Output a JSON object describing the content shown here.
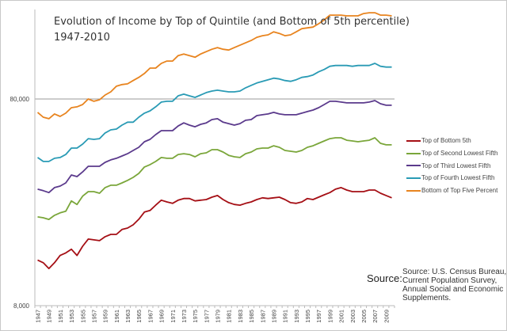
{
  "chart_data": {
    "type": "line",
    "title": "Evolution of Income by Top of Quintile (and Bottom of 5th percentile)",
    "subtitle": "1947-2010",
    "xlabel": "",
    "ylabel": "",
    "y_scale": "log",
    "ylim": [
      8000,
      220000
    ],
    "y_ticks": [
      8000,
      80000
    ],
    "y_tick_labels": [
      "8,000",
      "80,000"
    ],
    "gridlines": [
      80000
    ],
    "x": [
      1947,
      1948,
      1949,
      1950,
      1951,
      1952,
      1953,
      1954,
      1955,
      1956,
      1957,
      1958,
      1959,
      1960,
      1961,
      1962,
      1963,
      1964,
      1965,
      1966,
      1967,
      1968,
      1969,
      1970,
      1971,
      1972,
      1973,
      1974,
      1975,
      1976,
      1977,
      1978,
      1979,
      1980,
      1981,
      1982,
      1983,
      1984,
      1985,
      1986,
      1987,
      1988,
      1989,
      1990,
      1991,
      1992,
      1993,
      1994,
      1995,
      1996,
      1997,
      1998,
      1999,
      2000,
      2001,
      2002,
      2003,
      2004,
      2005,
      2006,
      2007,
      2008,
      2009,
      2010
    ],
    "x_tick_labels": [
      "1947",
      "1949",
      "1951",
      "1953",
      "1955",
      "1957",
      "1959",
      "1961",
      "1963",
      "1965",
      "1967",
      "1969",
      "1971",
      "1973",
      "1975",
      "1977",
      "1979",
      "1981",
      "1983",
      "1985",
      "1987",
      "1989",
      "1991",
      "1993",
      "1995",
      "1997",
      "1999",
      "2001",
      "2003",
      "2005",
      "2007",
      "2009"
    ],
    "legend_position": "right",
    "series": [
      {
        "name": "Top of Bottom 5th",
        "color": "#a50f15",
        "values": [
          13300,
          12900,
          12100,
          12900,
          14000,
          14400,
          15000,
          14000,
          15500,
          16800,
          16650,
          16500,
          17250,
          17700,
          17700,
          18700,
          19000,
          19700,
          20950,
          22700,
          23100,
          24500,
          25900,
          25400,
          25000,
          25900,
          26400,
          26400,
          25700,
          25900,
          26100,
          26800,
          27300,
          26100,
          25200,
          24700,
          24500,
          25000,
          25400,
          26100,
          26600,
          26400,
          26600,
          26800,
          26100,
          25200,
          25000,
          25400,
          26400,
          26100,
          26800,
          27500,
          28200,
          29300,
          29800,
          29000,
          28500,
          28500,
          28500,
          29000,
          29000,
          28000,
          27300,
          26600
        ]
      },
      {
        "name": "Top of Second Lowest Fifth",
        "color": "#7aa63a",
        "values": [
          21500,
          21300,
          20900,
          21900,
          22500,
          22900,
          25700,
          24700,
          27100,
          28500,
          28500,
          28000,
          29800,
          30600,
          30600,
          31400,
          32300,
          33400,
          34900,
          37500,
          38500,
          39900,
          41700,
          41300,
          41300,
          43100,
          43500,
          43100,
          42000,
          43500,
          43900,
          45500,
          45500,
          44300,
          42700,
          42000,
          41700,
          43500,
          44300,
          45900,
          46300,
          46300,
          47500,
          46700,
          45100,
          44700,
          44300,
          45100,
          46700,
          47500,
          48800,
          50100,
          51400,
          51900,
          51900,
          50500,
          50100,
          49700,
          50100,
          50500,
          51900,
          48800,
          48000,
          48000
        ]
      },
      {
        "name": "Top of Third Lowest Fifth",
        "color": "#5b3a8c",
        "values": [
          29300,
          28800,
          28200,
          29800,
          30300,
          31400,
          34300,
          33700,
          35500,
          37800,
          37800,
          37800,
          39500,
          40600,
          41300,
          42400,
          43500,
          45100,
          46700,
          49700,
          51000,
          53800,
          56200,
          56200,
          56200,
          59200,
          61300,
          59800,
          58700,
          60300,
          61300,
          63600,
          64200,
          61800,
          60800,
          59800,
          60800,
          63100,
          63600,
          66500,
          67100,
          67700,
          68900,
          67700,
          67100,
          67100,
          67100,
          68300,
          69500,
          70700,
          72600,
          75200,
          78000,
          78000,
          77300,
          76600,
          76600,
          76600,
          76600,
          77300,
          78600,
          75900,
          74600,
          74600
        ]
      },
      {
        "name": "Top of Fourth Lowest Fifth",
        "color": "#2a9bb5",
        "values": [
          41700,
          39900,
          39900,
          41300,
          41700,
          43100,
          46300,
          46300,
          48400,
          51400,
          51000,
          51400,
          54800,
          56700,
          57200,
          59800,
          61800,
          61800,
          65300,
          68300,
          70100,
          73300,
          77300,
          78000,
          78000,
          82900,
          84400,
          82900,
          81400,
          83600,
          85900,
          87400,
          88200,
          87400,
          86600,
          86600,
          87400,
          90600,
          93100,
          95600,
          97400,
          99100,
          100900,
          100000,
          98300,
          97400,
          99100,
          101800,
          102700,
          104500,
          108300,
          111200,
          115200,
          116200,
          116200,
          116200,
          115200,
          116200,
          116200,
          116200,
          119000,
          115200,
          114200,
          114200
        ]
      },
      {
        "name": "Bottom of Top Five Percent",
        "color": "#e8841f",
        "values": [
          68900,
          65300,
          64200,
          67700,
          65900,
          68300,
          72600,
          73300,
          75200,
          80000,
          78000,
          79300,
          83600,
          86600,
          92200,
          93900,
          94700,
          98300,
          101800,
          106300,
          112900,
          112900,
          118900,
          122100,
          122100,
          129700,
          132000,
          129700,
          127400,
          132000,
          135600,
          139200,
          141800,
          139200,
          138000,
          141800,
          145600,
          149500,
          153600,
          159100,
          161900,
          163400,
          169000,
          166100,
          161900,
          163400,
          169000,
          175100,
          176600,
          178200,
          184900,
          193100,
          203600,
          203600,
          203600,
          202000,
          202000,
          202000,
          207300,
          209100,
          209100,
          203600,
          203600,
          202000
        ]
      }
    ]
  },
  "source": {
    "label": "Source:",
    "lines": [
      "Source: U.S. Census Bureau,",
      "Current Population Survey,",
      "Annual Social and Economic",
      "Supplements."
    ]
  }
}
